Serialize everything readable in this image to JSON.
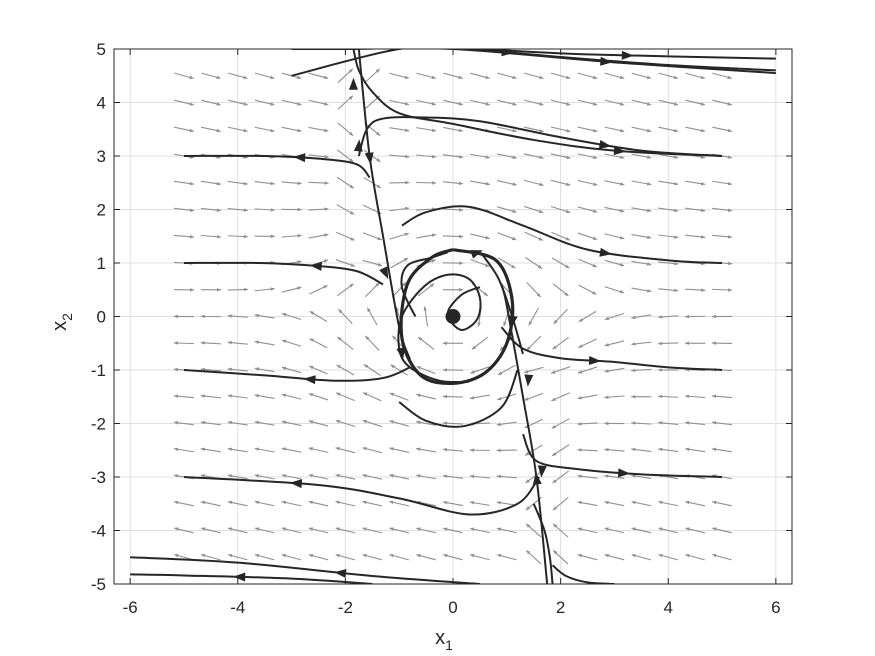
{
  "chart_data": {
    "type": "phase-portrait",
    "title": "",
    "xlabel": {
      "base": "x",
      "sub": "1"
    },
    "ylabel": {
      "base": "x",
      "sub": "2"
    },
    "xlim": [
      -6.3,
      6.3
    ],
    "ylim": [
      -5,
      5
    ],
    "xticks": [
      -6,
      -4,
      -2,
      0,
      2,
      4,
      6
    ],
    "yticks": [
      -5,
      -4,
      -3,
      -2,
      -1,
      0,
      1,
      2,
      3,
      4,
      5
    ],
    "xtick_labels": [
      "-6",
      "-4",
      "-2",
      "0",
      "2",
      "4",
      "6"
    ],
    "ytick_labels": [
      "-5",
      "-4",
      "-3",
      "-2",
      "-1",
      "0",
      "1",
      "2",
      "3",
      "4",
      "5"
    ],
    "grid": true,
    "equilibrium": {
      "x": 0,
      "y": 0
    },
    "vector_field": {
      "x_range": [
        -5,
        5
      ],
      "x_step": 0.5,
      "y_range": [
        -4.5,
        4.5
      ],
      "y_step": 0.5
    },
    "limit_cycle": {
      "x": [
        0,
        0.8,
        1.1,
        1.0,
        0.6,
        0,
        -0.6,
        -0.95,
        -0.85,
        -0.4,
        0
      ],
      "y": [
        1.25,
        1.05,
        0.3,
        -0.5,
        -1.05,
        -1.25,
        -1.1,
        -0.4,
        0.6,
        1.1,
        1.25
      ]
    },
    "trajectories": [
      {
        "x": [
          -3,
          -1,
          0.2,
          2,
          4,
          6
        ],
        "y": [
          4.5,
          5,
          5,
          4.85,
          4.7,
          4.6
        ],
        "arrow": 0.45
      },
      {
        "x": [
          -3,
          -2,
          0,
          3,
          6
        ],
        "y": [
          5,
          5,
          5,
          4.75,
          4.55
        ],
        "arrow": 0.65
      },
      {
        "x": [
          0.5,
          2.5,
          6
        ],
        "y": [
          5,
          4.9,
          4.82
        ],
        "arrow": 0.5
      },
      {
        "x": [
          -1.85,
          -1.75,
          -1.5,
          -1,
          0,
          1.5,
          3,
          5
        ],
        "y": [
          5,
          4.6,
          4.2,
          3.8,
          3.6,
          3.3,
          3.1,
          3.0
        ],
        "arrow": 0.75
      },
      {
        "x": [
          -1.75,
          -1.6,
          -1.3,
          -0.5,
          0.5,
          2,
          3.5,
          5
        ],
        "y": [
          3.0,
          3.5,
          3.7,
          3.72,
          3.65,
          3.35,
          3.1,
          3.0
        ],
        "arrow": 0.7
      },
      {
        "x": [
          -1.55,
          -1.8,
          -2.5,
          -3.5,
          -5
        ],
        "y": [
          2.6,
          2.85,
          2.95,
          3.0,
          3.0
        ],
        "arrow": 0.4
      },
      {
        "x": [
          -0.95,
          -0.5,
          0.3,
          1.3,
          2.5,
          4,
          5
        ],
        "y": [
          1.7,
          1.95,
          2.05,
          1.7,
          1.25,
          1.05,
          1.0
        ],
        "arrow": 0.65
      },
      {
        "x": [
          -1.3,
          -1.8,
          -2.6,
          -3.6,
          -5
        ],
        "y": [
          0.6,
          0.85,
          0.95,
          1.0,
          1.0
        ],
        "arrow": 0.35
      },
      {
        "x": [
          0.9,
          1.3,
          2.0,
          3.0,
          4.0,
          5.0
        ],
        "y": [
          -0.2,
          -0.6,
          -0.78,
          -0.85,
          -0.95,
          -1.0
        ],
        "arrow": 0.45
      },
      {
        "x": [
          -0.8,
          -1.3,
          -2.2,
          -3.5,
          -5
        ],
        "y": [
          -0.95,
          -1.15,
          -1.2,
          -1.1,
          -1.0
        ],
        "arrow": 0.45
      },
      {
        "x": [
          -1.0,
          -0.5,
          0.2,
          0.9,
          1.2
        ],
        "y": [
          -1.6,
          -1.95,
          -2.05,
          -1.7,
          -1.0
        ],
        "arrow": -1
      },
      {
        "x": [
          1.3,
          1.55,
          2.3,
          3.5,
          5.0
        ],
        "y": [
          -2.2,
          -2.7,
          -2.85,
          -2.95,
          -3.0
        ],
        "arrow": 0.55
      },
      {
        "x": [
          1.6,
          1.2,
          0.3,
          -1.0,
          -2.5,
          -5
        ],
        "y": [
          -3.0,
          -3.5,
          -3.7,
          -3.4,
          -3.15,
          -3.0
        ],
        "arrow": 0.7
      },
      {
        "x": [
          1.5,
          1.7,
          1.8,
          1.85
        ],
        "y": [
          -3.5,
          -4.0,
          -4.5,
          -5.0
        ],
        "arrow": -1
      },
      {
        "x": [
          1.85,
          2.1,
          2.5,
          3.0
        ],
        "y": [
          -4.65,
          -4.85,
          -4.97,
          -5.0
        ],
        "arrow": -1
      },
      {
        "x": [
          0.5,
          -1.5,
          -4,
          -6
        ],
        "y": [
          -5,
          -4.85,
          -4.6,
          -4.5
        ],
        "arrow": 0.4
      },
      {
        "x": [
          -1.5,
          -3,
          -5,
          -6
        ],
        "y": [
          -5,
          -4.9,
          -4.84,
          -4.82
        ],
        "arrow": 0.55
      },
      {
        "x": [
          0.5,
          0.15,
          -0.1,
          0.15,
          0.45,
          0.5,
          0.3,
          -0.1,
          -0.55,
          -0.95,
          -1.0,
          -0.8,
          -0.25,
          0.3
        ],
        "y": [
          0.55,
          0.4,
          0.05,
          -0.25,
          -0.05,
          0.35,
          0.7,
          0.78,
          0.55,
          0.0,
          -0.6,
          -0.95,
          -1.2,
          -1.22
        ],
        "arrow": -1
      },
      {
        "x": [
          -1.75,
          -1.55,
          -1.3,
          -1.0,
          -0.8
        ],
        "y": [
          5.0,
          3.0,
          1.5,
          -0.2,
          -0.8
        ],
        "arrow": 0.35
      },
      {
        "x": [
          1.75,
          1.55,
          1.3,
          1.0,
          0.9
        ],
        "y": [
          -5.0,
          -3.0,
          -1.5,
          0.2,
          0.6
        ],
        "arrow": 0.35
      },
      {
        "x": [
          -0.7,
          -0.95,
          -0.85,
          -0.4,
          -0.1
        ],
        "y": [
          0.0,
          0.55,
          0.95,
          1.1,
          1.2
        ],
        "arrow": -1
      },
      {
        "x": [
          0.55,
          0.85,
          1.1,
          1.3
        ],
        "y": [
          1.15,
          0.7,
          0.0,
          -0.7
        ],
        "arrow": -1
      }
    ],
    "arrow_markers": [
      {
        "x": -1.25,
        "y": 0.8,
        "angle": 65
      },
      {
        "x": -0.95,
        "y": -0.7,
        "angle": 80
      },
      {
        "x": 0.45,
        "y": 1.2,
        "angle": -20
      },
      {
        "x": 1.1,
        "y": -0.1,
        "angle": 100
      },
      {
        "x": 1.4,
        "y": -1.2,
        "angle": 95
      },
      {
        "x": 1.65,
        "y": -2.9,
        "angle": 95
      },
      {
        "x": -1.75,
        "y": 3.2,
        "angle": -85
      },
      {
        "x": -1.85,
        "y": 4.35,
        "angle": -90
      }
    ],
    "colors": {
      "trajectory": "#262626",
      "field": "#909090",
      "grid": "#dfdfdf",
      "axis": "#262626"
    }
  }
}
